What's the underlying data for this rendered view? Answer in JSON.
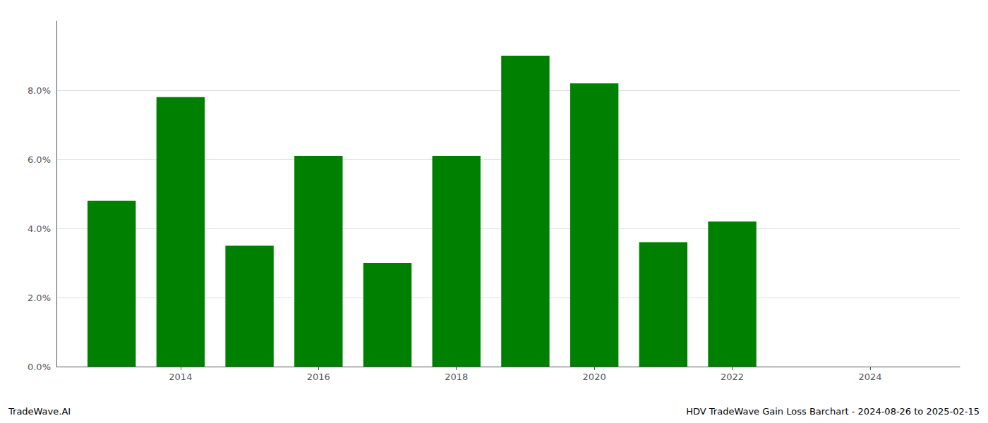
{
  "chart_data": {
    "type": "bar",
    "x": [
      2013,
      2014,
      2015,
      2016,
      2017,
      2018,
      2019,
      2020,
      2021,
      2022
    ],
    "values": [
      0.048,
      0.078,
      0.035,
      0.061,
      0.03,
      0.061,
      0.09,
      0.082,
      0.036,
      0.042
    ],
    "color": "#008000",
    "xlim": [
      2012.2,
      2025.3
    ],
    "xticks": [
      2014,
      2016,
      2018,
      2020,
      2022,
      2024
    ],
    "ylim": [
      0,
      0.1
    ],
    "yticks": [
      {
        "value": 0.0,
        "label": "0.0%"
      },
      {
        "value": 0.02,
        "label": "2.0%"
      },
      {
        "value": 0.04,
        "label": "4.0%"
      },
      {
        "value": 0.06,
        "label": "6.0%"
      },
      {
        "value": 0.08,
        "label": "8.0%"
      }
    ],
    "grid": true,
    "annotations": [
      "TradeWave.AI",
      "HDV TradeWave Gain Loss Barchart - 2024-08-26 to 2025-02-15"
    ]
  }
}
